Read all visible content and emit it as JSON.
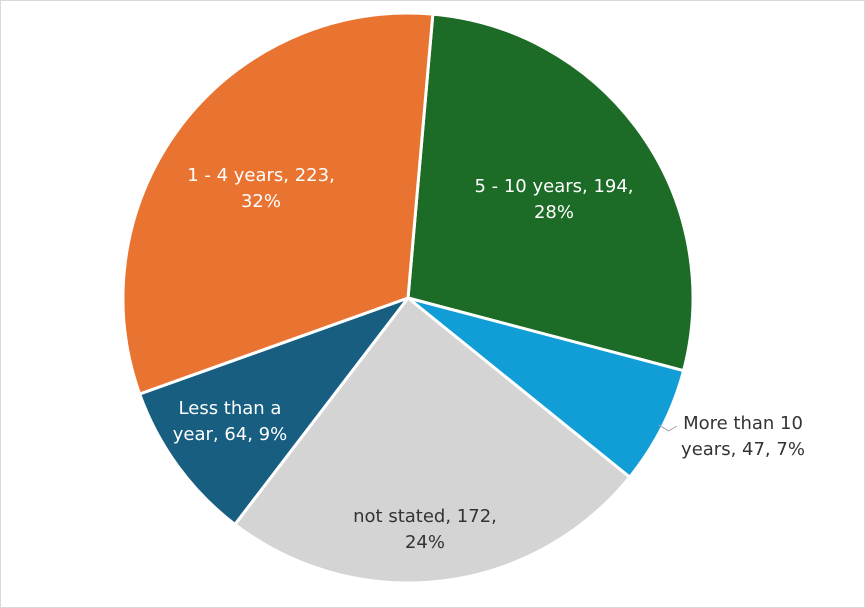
{
  "chart_data": {
    "type": "pie",
    "title": "",
    "start_angle_deg": 5,
    "direction": "clockwise",
    "legend": "none",
    "slices": [
      {
        "label": "5 - 10 years",
        "value": 194,
        "percent": "28%",
        "label_lines": [
          "5 - 10 years, 194,",
          "28%"
        ],
        "color": "#1c6b26",
        "text_color": "#ffffff"
      },
      {
        "label": "More than 10 years",
        "value": 47,
        "percent": "7%",
        "label_lines": [
          "More than 10",
          "years, 47, 7%"
        ],
        "color": "#119ed7",
        "text_color": "#333333"
      },
      {
        "label": "not stated",
        "value": 172,
        "percent": "24%",
        "label_lines": [
          "not stated, 172,",
          "24%"
        ],
        "color": "#d4d4d4",
        "text_color": "#333333"
      },
      {
        "label": "Less than a year",
        "value": 64,
        "percent": "9%",
        "label_lines": [
          "Less than a",
          "year, 64, 9%"
        ],
        "color": "#175e80",
        "text_color": "#ffffff"
      },
      {
        "label": "1 - 4 years",
        "value": 223,
        "percent": "32%",
        "label_lines": [
          "1 - 4 years, 223,",
          "32%"
        ],
        "color": "#e97432",
        "text_color": "#ffffff"
      }
    ]
  }
}
